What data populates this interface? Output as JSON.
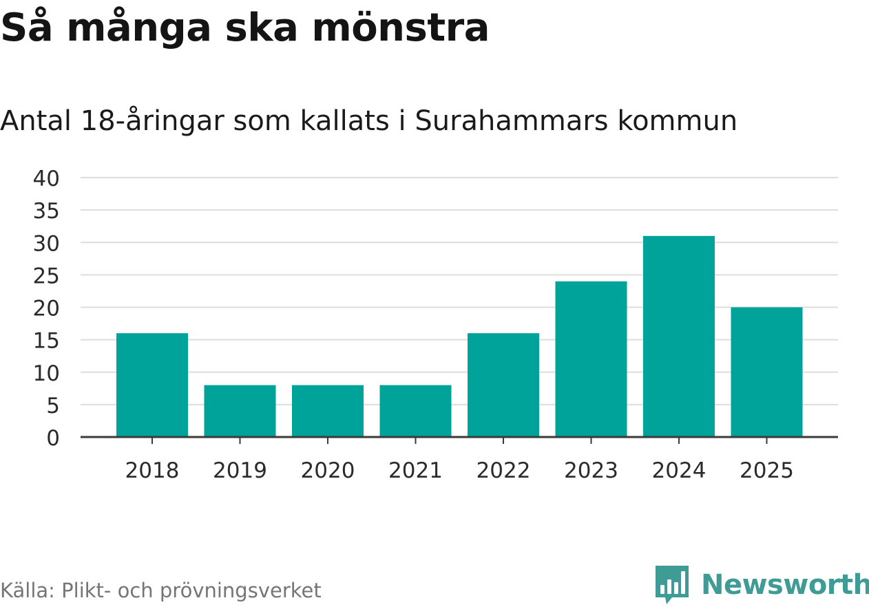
{
  "header": {
    "title": "Så många ska mönstra",
    "subtitle": "Antal 18-åringar som kallats i Surahammars kommun"
  },
  "footer": {
    "source": "Källa: Plikt- och prövningsverket",
    "brand_name": "Newsworthy",
    "brand_icon": "bar-chart-speech-bubble-icon"
  },
  "colors": {
    "bar": "#00a39a",
    "grid": "#dddddd",
    "axis": "#3a3a3a",
    "brand": "#3f9b95"
  },
  "chart_data": {
    "type": "bar",
    "categories": [
      "2018",
      "2019",
      "2020",
      "2021",
      "2022",
      "2023",
      "2024",
      "2025"
    ],
    "values": [
      16,
      8,
      8,
      8,
      16,
      24,
      31,
      20
    ],
    "ylim": [
      0,
      40
    ],
    "yticks": [
      0,
      5,
      10,
      15,
      20,
      25,
      30,
      35,
      40
    ],
    "grid": true,
    "legend": "none"
  }
}
